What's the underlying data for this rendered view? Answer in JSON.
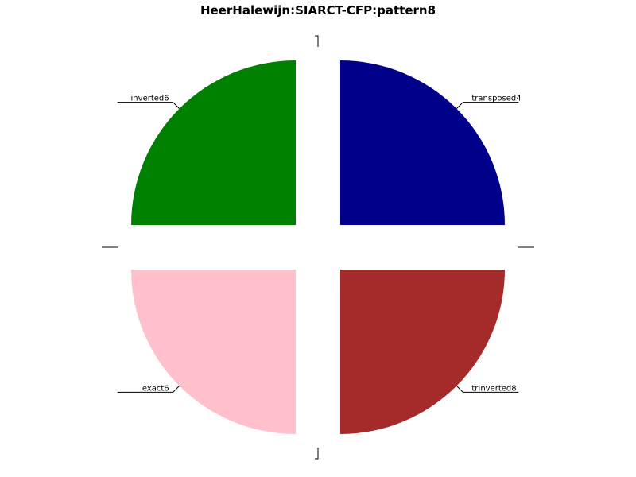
{
  "chart_data": {
    "type": "pie",
    "title": "HeerHalewijn:SIARCT-CFP:pattern8",
    "slices": [
      {
        "label": "transposed4",
        "value": 25,
        "color": "#00008B"
      },
      {
        "label": "trInverted8",
        "value": 25,
        "color": "#A52A2A"
      },
      {
        "label": "exact6",
        "value": 25,
        "color": "#FFC0CB"
      },
      {
        "label": "inverted6",
        "value": 25,
        "color": "#008000"
      }
    ],
    "start_angle_deg": 90,
    "direction": "clockwise",
    "exploded": true,
    "legend": "none"
  }
}
